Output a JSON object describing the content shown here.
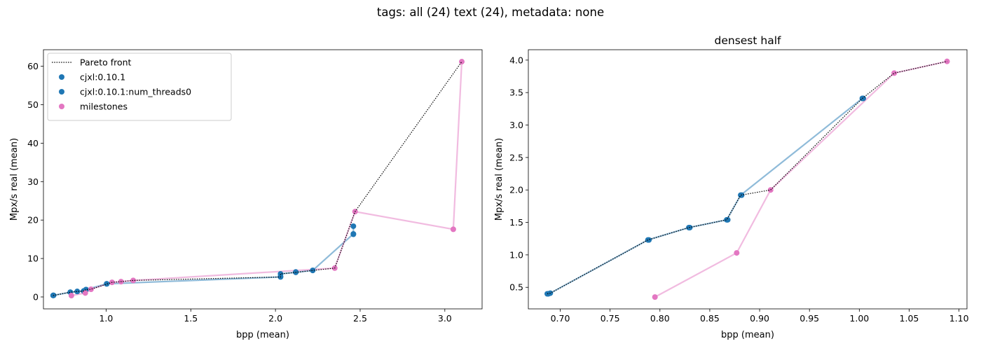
{
  "suptitle": "tags: all (24) text (24), metadata: none",
  "colors": {
    "blue": "#1f77b4",
    "pink": "#e377c2",
    "front": "#000000"
  },
  "chart_data": [
    {
      "type": "scatter",
      "title": "",
      "xlabel": "bpp (mean)",
      "ylabel": "Mpx/s real (mean)",
      "xlim": [
        0.63,
        3.22
      ],
      "ylim": [
        -3.1,
        64.3
      ],
      "xticks": [
        1.0,
        1.5,
        2.0,
        2.5,
        3.0
      ],
      "xtick_labels": [
        "1.0",
        "1.5",
        "2.0",
        "2.5",
        "3.0"
      ],
      "yticks": [
        0,
        10,
        20,
        30,
        40,
        50,
        60
      ],
      "ytick_labels": [
        "0",
        "10",
        "20",
        "30",
        "40",
        "50",
        "60"
      ],
      "legend": {
        "placement": "upper-left",
        "entries": [
          {
            "label": "Pareto front",
            "kind": "dotted-line",
            "color": "#000000"
          },
          {
            "label": "cjxl:0.10.1",
            "kind": "marker",
            "color": "#1f77b4"
          },
          {
            "label": "cjxl:0.10.1:num_threads0",
            "kind": "marker",
            "color": "#1f77b4"
          },
          {
            "label": "milestones",
            "kind": "marker",
            "color": "#e377c2"
          }
        ]
      },
      "series": [
        {
          "name": "cjxl:0.10.1",
          "color": "#1f77b4",
          "line": true,
          "points": [
            [
              0.687,
              0.4
            ],
            [
              0.69,
              0.41
            ],
            [
              0.788,
              1.23
            ],
            [
              0.829,
              1.42
            ],
            [
              0.867,
              1.54
            ],
            [
              0.881,
              1.92
            ],
            [
              1.003,
              3.41
            ],
            [
              2.03,
              5.2
            ],
            [
              2.03,
              6.0
            ],
            [
              2.12,
              6.4
            ],
            [
              2.22,
              6.9
            ],
            [
              2.46,
              16.4
            ],
            [
              2.46,
              18.4
            ]
          ]
        },
        {
          "name": "cjxl:0.10.1:num_threads0",
          "color": "#1f77b4",
          "line": false,
          "points": [
            [
              0.688,
              0.4
            ],
            [
              0.789,
              1.23
            ],
            [
              0.83,
              1.42
            ],
            [
              0.868,
              1.54
            ],
            [
              0.882,
              1.92
            ],
            [
              1.004,
              3.41
            ],
            [
              2.03,
              5.3
            ],
            [
              2.12,
              6.5
            ],
            [
              2.22,
              6.9
            ],
            [
              2.46,
              16.3
            ]
          ]
        },
        {
          "name": "milestones",
          "color": "#e377c2",
          "line": true,
          "points": [
            [
              0.795,
              0.35
            ],
            [
              0.877,
              1.03
            ],
            [
              0.911,
              2.0
            ],
            [
              1.035,
              3.8
            ],
            [
              1.088,
              3.98
            ],
            [
              1.16,
              4.3
            ],
            [
              2.35,
              7.5
            ],
            [
              2.47,
              22.2
            ],
            [
              3.05,
              17.6
            ],
            [
              3.1,
              61.2
            ]
          ]
        }
      ],
      "pareto_front": [
        [
          0.687,
          0.4
        ],
        [
          0.69,
          0.41
        ],
        [
          0.788,
          1.23
        ],
        [
          0.829,
          1.42
        ],
        [
          0.867,
          1.54
        ],
        [
          0.881,
          1.92
        ],
        [
          0.911,
          2.0
        ],
        [
          1.035,
          3.8
        ],
        [
          1.088,
          3.98
        ],
        [
          1.16,
          4.3
        ],
        [
          2.03,
          5.2
        ],
        [
          2.03,
          6.0
        ],
        [
          2.12,
          6.4
        ],
        [
          2.22,
          6.9
        ],
        [
          2.35,
          7.5
        ],
        [
          2.47,
          22.2
        ],
        [
          3.1,
          61.2
        ]
      ]
    },
    {
      "type": "scatter",
      "title": "densest half",
      "xlabel": "bpp (mean)",
      "ylabel": "Mpx/s real (mean)",
      "xlim": [
        0.668,
        1.108
      ],
      "ylim": [
        0.168,
        4.16
      ],
      "xticks": [
        0.7,
        0.75,
        0.8,
        0.85,
        0.9,
        0.95,
        1.0,
        1.05,
        1.1
      ],
      "xtick_labels": [
        "0.70",
        "0.75",
        "0.80",
        "0.85",
        "0.90",
        "0.95",
        "1.00",
        "1.05",
        "1.10"
      ],
      "yticks": [
        0.5,
        1.0,
        1.5,
        2.0,
        2.5,
        3.0,
        3.5,
        4.0
      ],
      "ytick_labels": [
        "0.5",
        "1.0",
        "1.5",
        "2.0",
        "2.5",
        "3.0",
        "3.5",
        "4.0"
      ],
      "series": [
        {
          "name": "cjxl:0.10.1",
          "color": "#1f77b4",
          "line": true,
          "points": [
            [
              0.687,
              0.4
            ],
            [
              0.69,
              0.41
            ],
            [
              0.788,
              1.23
            ],
            [
              0.829,
              1.42
            ],
            [
              0.867,
              1.54
            ],
            [
              0.881,
              1.92
            ],
            [
              1.003,
              3.41
            ]
          ]
        },
        {
          "name": "cjxl:0.10.1:num_threads0",
          "color": "#1f77b4",
          "line": false,
          "points": [
            [
              0.688,
              0.4
            ],
            [
              0.789,
              1.23
            ],
            [
              0.83,
              1.42
            ],
            [
              0.868,
              1.54
            ],
            [
              0.882,
              1.92
            ],
            [
              1.004,
              3.41
            ]
          ]
        },
        {
          "name": "milestones",
          "color": "#e377c2",
          "line": true,
          "points": [
            [
              0.795,
              0.35
            ],
            [
              0.877,
              1.03
            ],
            [
              0.911,
              2.0
            ],
            [
              1.035,
              3.8
            ],
            [
              1.088,
              3.98
            ]
          ]
        }
      ],
      "pareto_front": [
        [
          0.687,
          0.4
        ],
        [
          0.69,
          0.41
        ],
        [
          0.788,
          1.23
        ],
        [
          0.829,
          1.42
        ],
        [
          0.867,
          1.54
        ],
        [
          0.881,
          1.92
        ],
        [
          0.911,
          2.0
        ],
        [
          1.003,
          3.41
        ],
        [
          1.035,
          3.8
        ],
        [
          1.088,
          3.98
        ]
      ]
    }
  ]
}
